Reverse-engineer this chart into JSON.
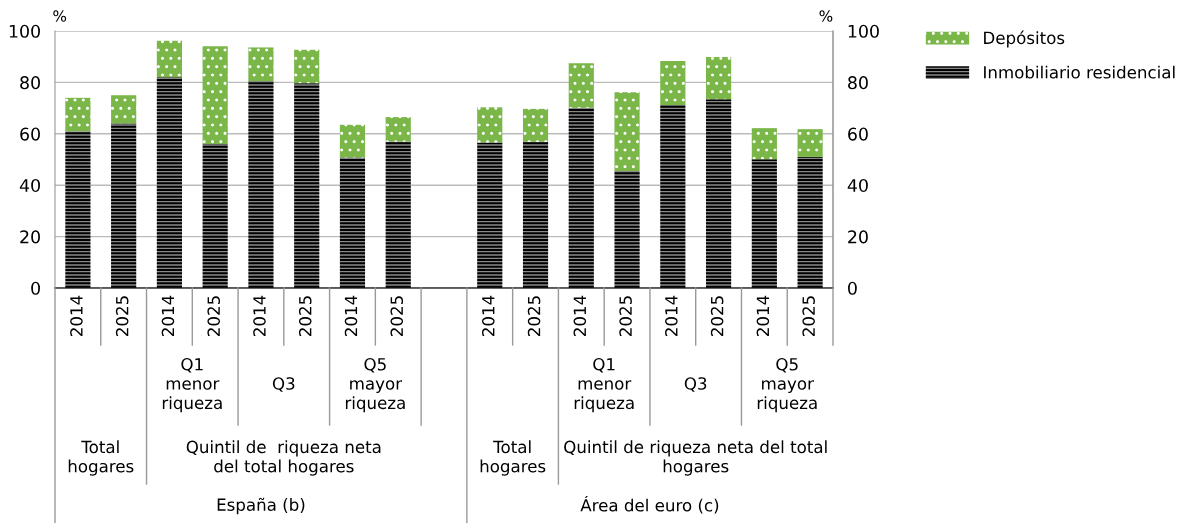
{
  "chart_data": {
    "type": "bar",
    "stacked": true,
    "categories": [
      "2014",
      "2025",
      "2014",
      "2025",
      "2014",
      "2025",
      "2014",
      "2025",
      null,
      "2014",
      "2025",
      "2014",
      "2025",
      "2014",
      "2025",
      "2014",
      "2025"
    ],
    "series": [
      {
        "name": "Inmobiliario residencial",
        "color": "#000000",
        "values": [
          61,
          64,
          82,
          56,
          80.5,
          79.7,
          50.8,
          57,
          null,
          56.6,
          56.9,
          70.1,
          45.5,
          71.2,
          73.4,
          50.1,
          51
        ]
      },
      {
        "name": "Depósitos",
        "color": "#7ab648",
        "values": [
          13,
          11,
          14.2,
          38.1,
          13.1,
          13,
          12.7,
          9.5,
          null,
          13.7,
          12.8,
          17.4,
          30.7,
          17.1,
          16.5,
          12.1,
          10.8
        ]
      }
    ],
    "ylabel": "%",
    "y2label": "%",
    "ylim": [
      0,
      100
    ],
    "yticks": [
      0,
      20,
      40,
      60,
      80,
      100
    ],
    "y2lim": [
      0,
      100
    ],
    "y2ticks": [
      0,
      20,
      40,
      60,
      80,
      100
    ],
    "grid": "y",
    "legend": "top right",
    "annotations": [
      "Q1\nmenor\nriqueza",
      "Q3",
      "Q5\nmayor\nriqueza",
      "Q1\nmenor\nriqueza",
      "Q3",
      "Q5\nmayor\nriqueza",
      "Total\nhogares",
      "Quintil de  riqueza neta\ndel total hogares",
      "Total\nhogares",
      "Quintil de riqueza neta del total\nhogares",
      "España (b)",
      "Área del euro (c)"
    ]
  }
}
